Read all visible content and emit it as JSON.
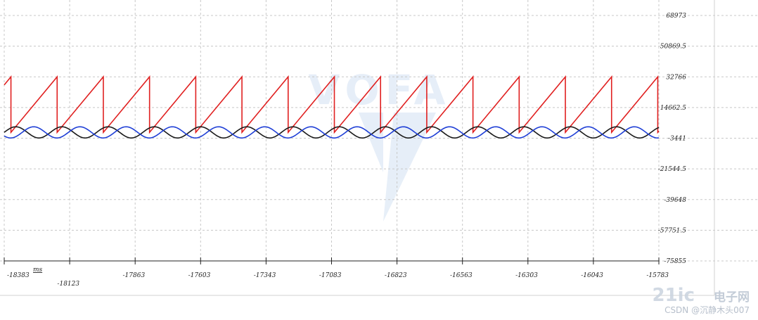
{
  "chart_data": {
    "type": "line",
    "x_unit": "ms",
    "xlim": [
      -18383,
      -15783
    ],
    "ylim": [
      -75855,
      68973
    ],
    "x_ticks": [
      -18383,
      -18123,
      -17863,
      -17603,
      -17343,
      -17083,
      -16823,
      -16563,
      -16303,
      -16043,
      -15783
    ],
    "y_ticks": [
      68973,
      50869.5,
      32766,
      14662.5,
      -3441,
      -21544.5,
      -39648,
      -57751.5,
      -75855
    ],
    "x_tick_labels": [
      "-18383",
      "-18123",
      "-17863",
      "-17603",
      "-17343",
      "-17083",
      "-16823",
      "-16563",
      "-16303",
      "-16043",
      "-15783"
    ],
    "y_tick_labels": [
      "68973",
      "50869.5",
      "32766",
      "14662.5",
      "-3441",
      "-21544.5",
      "-39648",
      "-57751.5",
      "-75855"
    ],
    "grid": true,
    "series": [
      {
        "color": "#e02020",
        "shape": "sawtooth",
        "period": 183.5,
        "min": 0,
        "max": 32766,
        "start_value": 28000
      },
      {
        "color": "#1a1a1a",
        "shape": "sine",
        "period": 183.5,
        "amplitude": 3300,
        "offset": 0,
        "phase_deg": 0
      },
      {
        "color": "#1f3fd6",
        "shape": "sine",
        "period": 183.5,
        "amplitude": 3300,
        "offset": 0,
        "phase_deg": 220
      }
    ]
  },
  "watermark": {
    "logo_center": "VOFA",
    "logo_corner_a": "21ic",
    "logo_corner_b": "电子网",
    "credit": "CSDN @沉静木头007"
  }
}
